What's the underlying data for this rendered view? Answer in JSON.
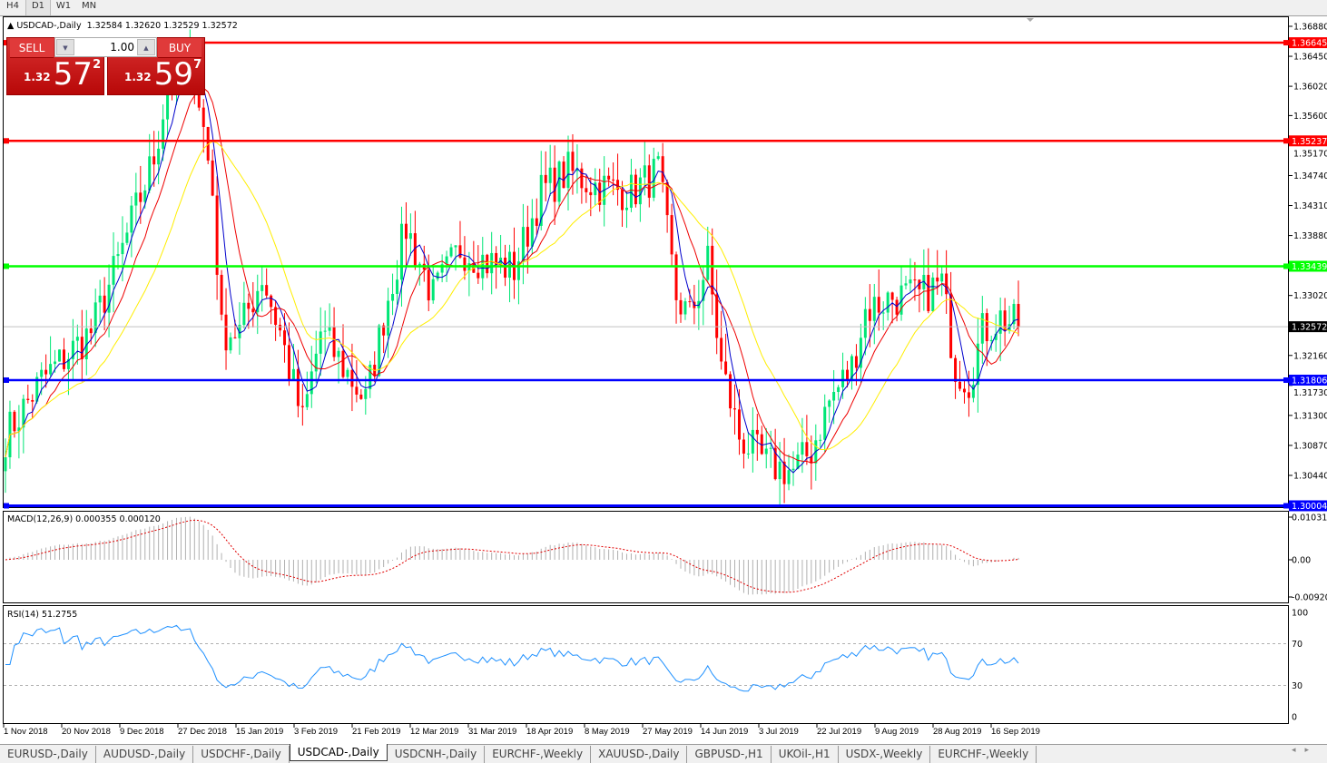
{
  "timeframes": [
    {
      "label": "H4",
      "active": false
    },
    {
      "label": "D1",
      "active": true
    },
    {
      "label": "W1",
      "active": false
    },
    {
      "label": "MN",
      "active": false
    }
  ],
  "header": {
    "symbol": "USDCAD-,Daily",
    "ohlc": "1.32584 1.32620 1.32529 1.32572"
  },
  "trade_panel": {
    "sell_label": "SELL",
    "buy_label": "BUY",
    "lot": "1.00",
    "sell_small": "1.32",
    "sell_large": "57",
    "sell_sup": "2",
    "buy_small": "1.32",
    "buy_large": "59",
    "buy_sup": "7"
  },
  "price_axis": {
    "ticks": [
      "1.36880",
      "1.36450",
      "1.36020",
      "1.35600",
      "1.35170",
      "1.34740",
      "1.34310",
      "1.33880",
      "1.33020",
      "1.32160",
      "1.31730",
      "1.31300",
      "1.30870",
      "1.30440"
    ],
    "current": "1.32572"
  },
  "levels": [
    {
      "price": "1.36645",
      "color": "#ff0000"
    },
    {
      "price": "1.35237",
      "color": "#ff0000"
    },
    {
      "price": "1.33439",
      "color": "#00ff00"
    },
    {
      "price": "1.31806",
      "color": "#0000ff"
    },
    {
      "price": "1.30004",
      "color": "#0000ff"
    }
  ],
  "macd": {
    "label": "MACD(12,26,9) 0.000355 0.000120",
    "ticks": [
      "0.010311",
      "0.00",
      "-0.009203"
    ]
  },
  "rsi": {
    "label": "RSI(14) 51.2755",
    "ticks": [
      "100",
      "70",
      "30",
      "0"
    ]
  },
  "x_axis": [
    "1 Nov 2018",
    "20 Nov 2018",
    "9 Dec 2018",
    "27 Dec 2018",
    "15 Jan 2019",
    "3 Feb 2019",
    "21 Feb 2019",
    "12 Mar 2019",
    "31 Mar 2019",
    "18 Apr 2019",
    "8 May 2019",
    "27 May 2019",
    "14 Jun 2019",
    "3 Jul 2019",
    "22 Jul 2019",
    "9 Aug 2019",
    "28 Aug 2019",
    "16 Sep 2019"
  ],
  "colors": {
    "bull": "#00e676",
    "bear": "#ff0000",
    "ma_fast": "#0000cc",
    "ma_mid": "#ee0000",
    "ma_slow": "#ffee00"
  },
  "chart_data": {
    "type": "candlestick",
    "approx_close_path": [
      [
        0,
        1.31
      ],
      [
        8,
        1.318
      ],
      [
        19,
        1.325
      ],
      [
        25,
        1.335
      ],
      [
        33,
        1.35
      ],
      [
        36,
        1.36
      ],
      [
        42,
        1.363
      ],
      [
        46,
        1.345
      ],
      [
        48,
        1.325
      ],
      [
        52,
        1.325
      ],
      [
        57,
        1.333
      ],
      [
        61,
        1.325
      ],
      [
        66,
        1.312
      ],
      [
        70,
        1.325
      ],
      [
        75,
        1.32
      ],
      [
        80,
        1.315
      ],
      [
        85,
        1.33
      ],
      [
        89,
        1.34
      ],
      [
        95,
        1.33
      ],
      [
        101,
        1.337
      ],
      [
        107,
        1.335
      ],
      [
        113,
        1.334
      ],
      [
        119,
        1.345
      ],
      [
        125,
        1.348
      ],
      [
        131,
        1.346
      ],
      [
        139,
        1.345
      ],
      [
        145,
        1.348
      ],
      [
        149,
        1.33
      ],
      [
        152,
        1.327
      ],
      [
        156,
        1.335
      ],
      [
        159,
        1.32
      ],
      [
        163,
        1.31
      ],
      [
        169,
        1.306
      ],
      [
        175,
        1.305
      ],
      [
        179,
        1.308
      ],
      [
        183,
        1.315
      ],
      [
        188,
        1.32
      ],
      [
        191,
        1.328
      ],
      [
        197,
        1.33
      ],
      [
        203,
        1.33
      ],
      [
        208,
        1.332
      ],
      [
        211,
        1.32
      ],
      [
        214,
        1.318
      ],
      [
        217,
        1.325
      ],
      [
        221,
        1.327
      ],
      [
        225,
        1.3257
      ]
    ]
  },
  "tabs": [
    {
      "label": "EURUSD-,Daily"
    },
    {
      "label": "AUDUSD-,Daily"
    },
    {
      "label": "USDCHF-,Daily"
    },
    {
      "label": "USDCAD-,Daily",
      "active": true
    },
    {
      "label": "USDCNH-,Daily"
    },
    {
      "label": "EURCHF-,Weekly"
    },
    {
      "label": "XAUUSD-,Daily"
    },
    {
      "label": "GBPUSD-,H1"
    },
    {
      "label": "UKOil-,H1"
    },
    {
      "label": "USDX-,Weekly"
    },
    {
      "label": "EURCHF-,Weekly"
    }
  ]
}
